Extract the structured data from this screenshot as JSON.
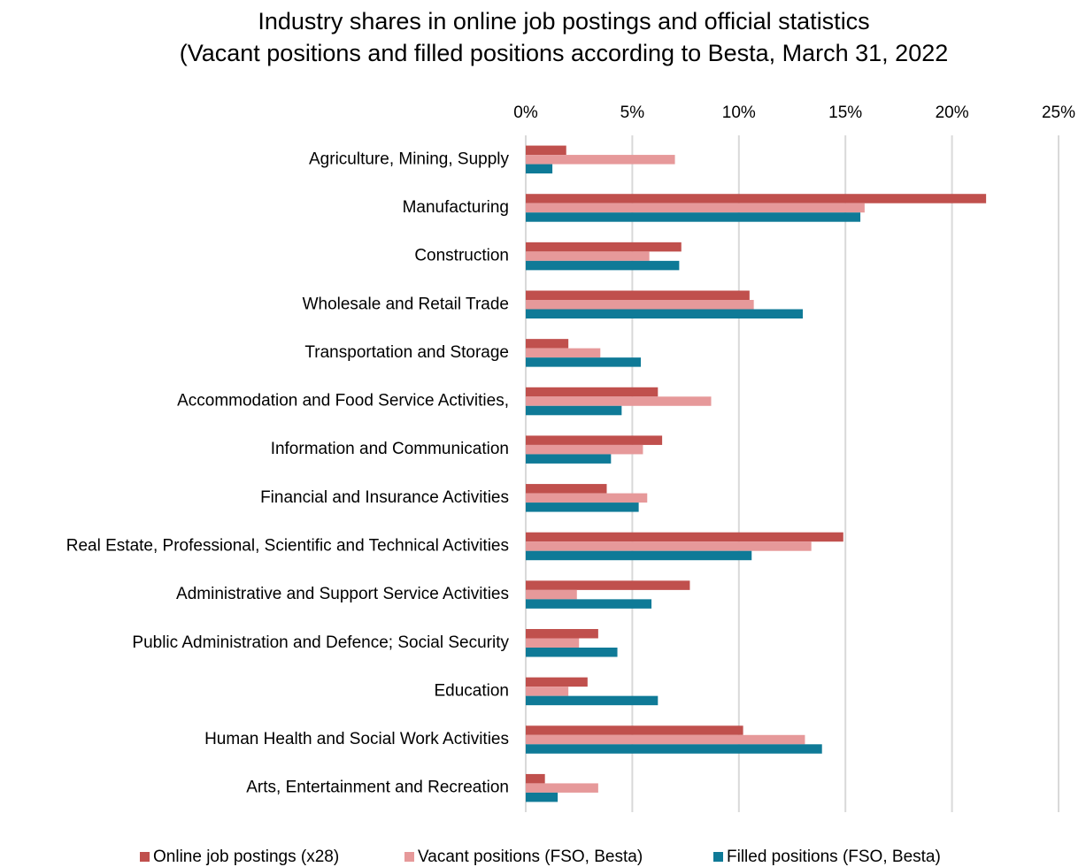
{
  "chart_data": {
    "type": "hbar",
    "title": "Industry shares in online job postings and official statistics",
    "subtitle": "(Vacant positions and filled positions according to Besta, March 31, 2022",
    "categories": [
      "Agriculture, Mining, Supply",
      "Manufacturing",
      "Construction",
      "Wholesale and Retail Trade",
      "Transportation and Storage",
      "Accommodation and Food Service Activities,",
      "Information and Communication",
      "Financial and Insurance Activities",
      "Real Estate, Professional, Scientific and Technical Activities",
      "Administrative and Support Service Activities",
      "Public Administration and Defence; Social Security",
      "Education",
      "Human Health and Social Work Activities",
      "Arts, Entertainment and Recreation"
    ],
    "series": [
      {
        "name": "Online job postings (x28)",
        "color": "#c0504d",
        "values": [
          1.9,
          21.6,
          7.3,
          10.5,
          2.0,
          6.2,
          6.4,
          3.8,
          14.9,
          7.7,
          3.4,
          2.9,
          10.2,
          0.9
        ]
      },
      {
        "name": "Vacant positions (FSO, Besta)",
        "color": "#e6999a",
        "values": [
          7.0,
          15.9,
          5.8,
          10.7,
          3.5,
          8.7,
          5.5,
          5.7,
          13.4,
          2.4,
          2.5,
          2.0,
          13.1,
          3.4
        ]
      },
      {
        "name": "Filled positions (FSO, Besta)",
        "color": "#0f7a97",
        "values": [
          1.25,
          15.7,
          7.2,
          13.0,
          5.4,
          4.5,
          4.0,
          5.3,
          10.6,
          5.9,
          4.3,
          6.2,
          13.9,
          1.5
        ]
      }
    ],
    "xlim": [
      0,
      25
    ],
    "xticks": [
      {
        "value": 0,
        "label": "0%"
      },
      {
        "value": 5,
        "label": "5%"
      },
      {
        "value": 10,
        "label": "10%"
      },
      {
        "value": 15,
        "label": "15%"
      },
      {
        "value": 20,
        "label": "20%"
      },
      {
        "value": 25,
        "label": "25%"
      }
    ],
    "grid": true,
    "legend": "bottom"
  }
}
